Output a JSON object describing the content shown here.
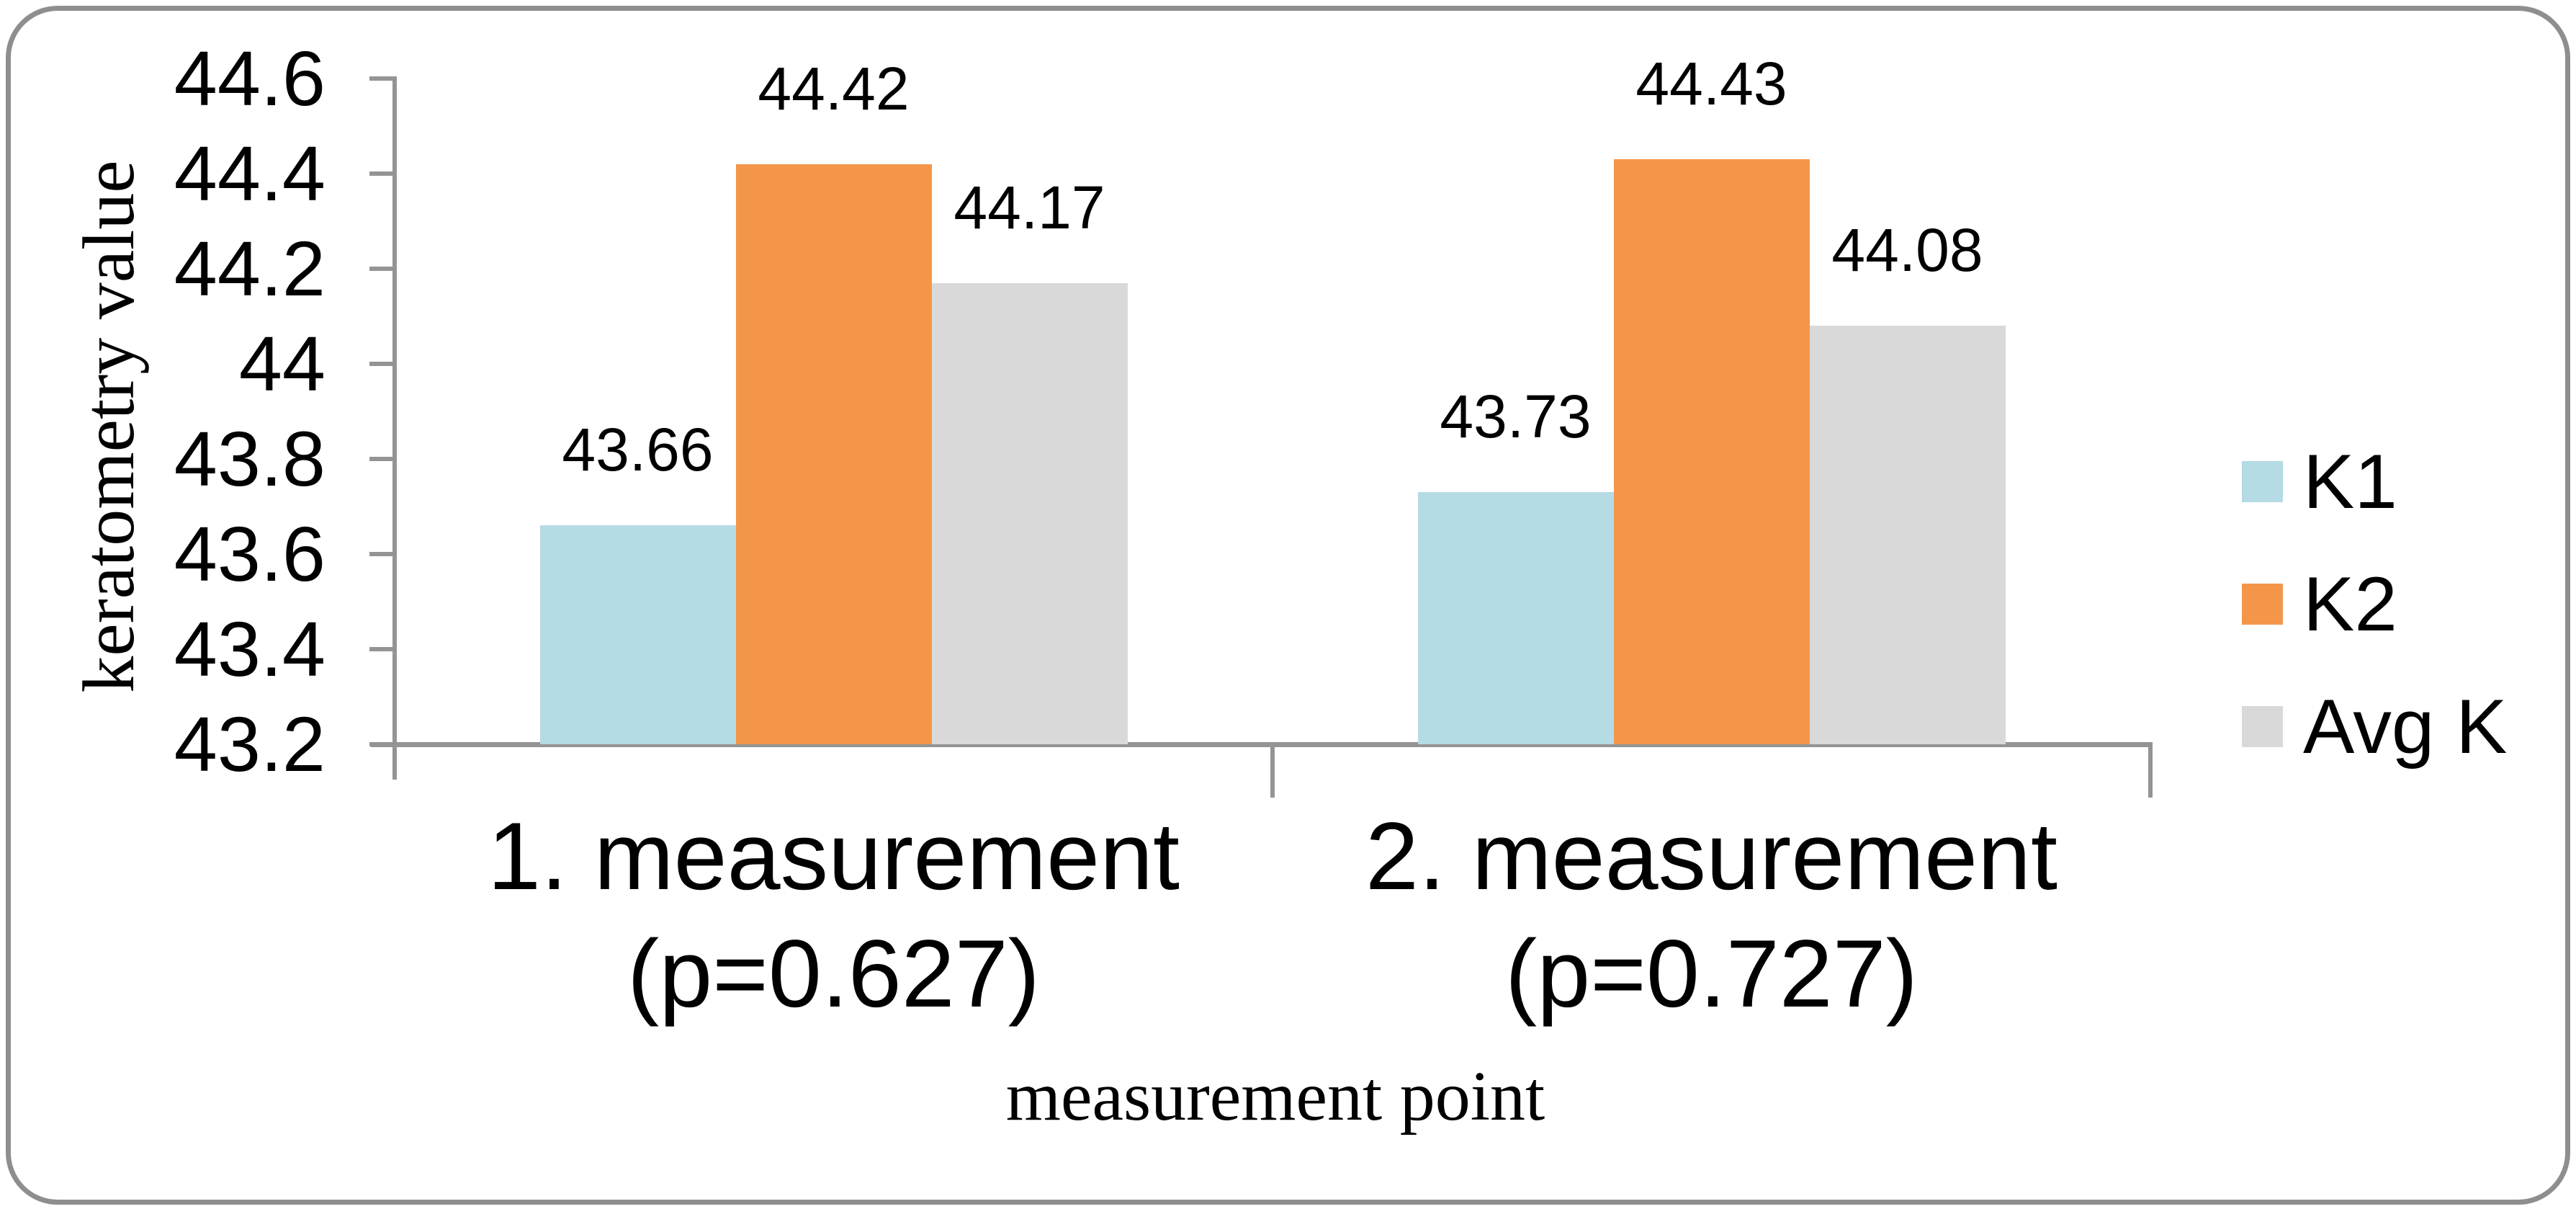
{
  "frame": {
    "border_color": "#8E8E8E"
  },
  "axes": {
    "y_title": "keratometry value",
    "x_title": "measurement point",
    "axis_color": "#949494"
  },
  "legend": {
    "position": "right",
    "items": [
      {
        "label": "K1",
        "color": "#B5DBE5"
      },
      {
        "label": "K2",
        "color": "#F4964A"
      },
      {
        "label": "Avg K",
        "color": "#D9D9D9"
      }
    ]
  },
  "chart_data": {
    "type": "bar",
    "title": "",
    "xlabel": "measurement point",
    "ylabel": "keratometry value",
    "categories": [
      [
        "1. measurement",
        "(p=0.627)"
      ],
      [
        "2. measurement",
        "(p=0.727)"
      ]
    ],
    "series": [
      {
        "name": "K1",
        "color": "#B5DBE5",
        "values": [
          43.66,
          43.73
        ],
        "labels": [
          "43.66",
          "43.73"
        ]
      },
      {
        "name": "K2",
        "color": "#F4964A",
        "values": [
          44.42,
          44.43
        ],
        "labels": [
          "44.42",
          "44.43"
        ]
      },
      {
        "name": "Avg K",
        "color": "#D9D9D9",
        "values": [
          44.17,
          44.08
        ],
        "labels": [
          "44.17",
          "44.08"
        ]
      }
    ],
    "ylim": [
      43.2,
      44.6
    ],
    "yticks": {
      "values": [
        44.6,
        44.4,
        44.2,
        44.0,
        43.8,
        43.6,
        43.4,
        43.2
      ],
      "labels": [
        "44.6",
        "44.4",
        "44.2",
        "44",
        "43.8",
        "43.6",
        "43.4",
        "43.2"
      ]
    },
    "grid": false,
    "data_labels": true,
    "legend_position": "right"
  }
}
